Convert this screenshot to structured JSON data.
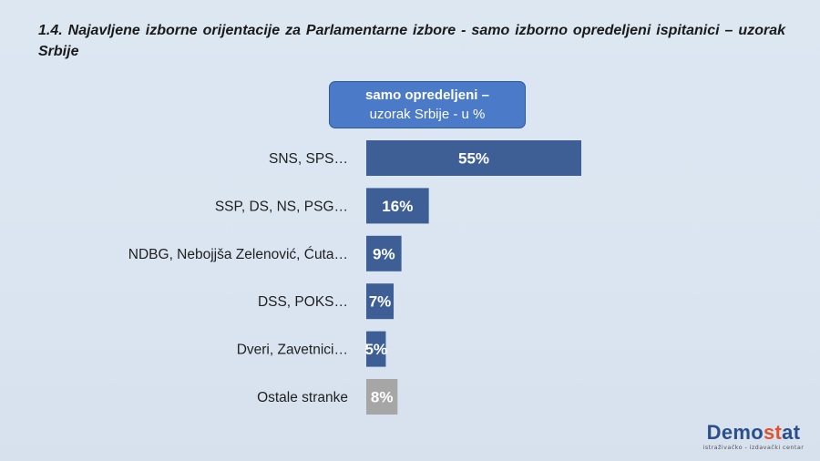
{
  "title": "1.4. Najavljene izborne orijentacije za Parlamentarne izbore - samo izborno opredeljeni ispitanici – uzorak Srbije",
  "header": {
    "line1": "samo opredeljeni –",
    "line2": "uzorak Srbije - u %"
  },
  "logo": {
    "name_part1": "Demo",
    "name_accent": "st",
    "name_part2": "at",
    "tagline": "istraživačko - izdavački centar"
  },
  "chart_data": {
    "type": "bar",
    "orientation": "horizontal",
    "categories": [
      "SNS, SPS…",
      "SSP, DS, NS, PSG…",
      "NDBG, Nebojjša Zelenović, Ćuta…",
      "DSS, POKS…",
      "Dveri, Zavetnici…",
      "Ostale stranke"
    ],
    "values": [
      55,
      16,
      9,
      7,
      5,
      8
    ],
    "value_labels": [
      "55%",
      "16%",
      "9%",
      "7%",
      "5%",
      "8%"
    ],
    "colors": [
      "#3d5f96",
      "#3d5f96",
      "#3d5f96",
      "#3d5f96",
      "#3d5f96",
      "#a6a6a6"
    ],
    "xlim": [
      0,
      55
    ],
    "grid": false,
    "legend": "none"
  }
}
